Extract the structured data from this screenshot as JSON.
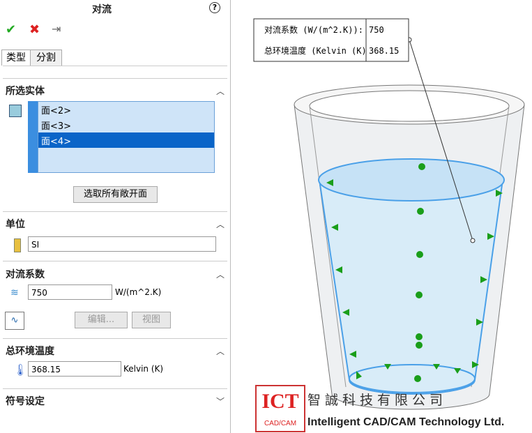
{
  "panel": {
    "title": "对流",
    "help": "?",
    "tabs": [
      "类型",
      "分割"
    ],
    "selected_entities": {
      "heading": "所选实体",
      "items": [
        "面<2>",
        "面<3>",
        "面<4>"
      ],
      "button": "选取所有敞开面"
    },
    "units": {
      "heading": "单位",
      "value": "SI"
    },
    "convection": {
      "heading": "对流系数",
      "value": "750",
      "unit": "W/(m^2.K)",
      "buttons": [
        "编辑...",
        "视图"
      ]
    },
    "ambient": {
      "heading": "总环境温度",
      "value": "368.15",
      "unit": "Kelvin (K)"
    },
    "symbol": {
      "heading": "符号设定"
    }
  },
  "callout": {
    "rows": [
      [
        "对流系数 (W/(m^2.K)):",
        "750"
      ],
      [
        "总环境温度 (Kelvin (K)",
        "368.15"
      ]
    ]
  },
  "watermark": {
    "logo": "ICT",
    "logo_sub": "CAD/CAM",
    "company_cn": "智誠科技有限公司",
    "company_en": "Intelligent CAD/CAM Technology Ltd."
  }
}
